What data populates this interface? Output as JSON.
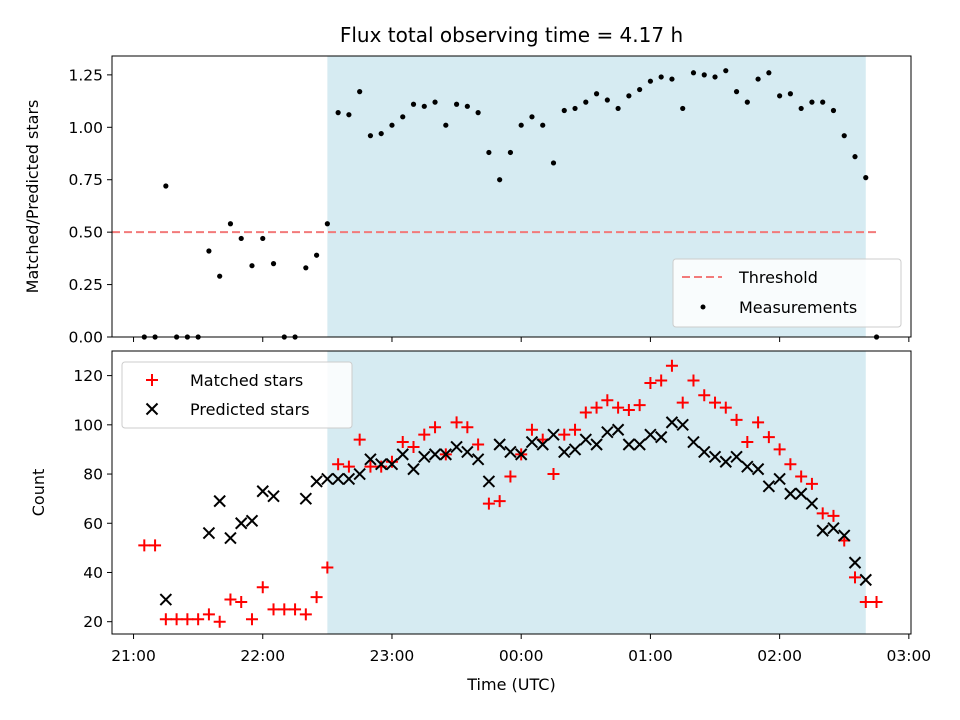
{
  "chart_data": [
    {
      "type": "scatter",
      "title": "Flux total observing time = 4.17 h",
      "xlabel": "",
      "ylabel": "Matched/Predicted stars",
      "ylim": [
        0,
        1.34
      ],
      "yticks": [
        "0.00",
        "0.25",
        "0.50",
        "0.75",
        "1.00",
        "1.25"
      ],
      "shaded_region": [
        "22:30",
        "02:40"
      ],
      "threshold": {
        "name": "Threshold",
        "value": 0.5,
        "x_range": [
          "20:50",
          "02:45"
        ],
        "color": "#f27a7a"
      },
      "legend_position": "lower right",
      "series": [
        {
          "name": "Measurements",
          "color": "#000000",
          "points": [
            [
              "21:05",
              0.0
            ],
            [
              "21:10",
              0.0
            ],
            [
              "21:15",
              0.72
            ],
            [
              "21:20",
              0.0
            ],
            [
              "21:25",
              0.0
            ],
            [
              "21:30",
              0.0
            ],
            [
              "21:35",
              0.41
            ],
            [
              "21:40",
              0.29
            ],
            [
              "21:45",
              0.54
            ],
            [
              "21:50",
              0.47
            ],
            [
              "21:55",
              0.34
            ],
            [
              "22:00",
              0.47
            ],
            [
              "22:05",
              0.35
            ],
            [
              "22:10",
              0.0
            ],
            [
              "22:15",
              0.0
            ],
            [
              "22:20",
              0.33
            ],
            [
              "22:25",
              0.39
            ],
            [
              "22:30",
              0.54
            ],
            [
              "22:35",
              1.07
            ],
            [
              "22:40",
              1.06
            ],
            [
              "22:45",
              1.17
            ],
            [
              "22:50",
              0.96
            ],
            [
              "22:55",
              0.97
            ],
            [
              "23:00",
              1.01
            ],
            [
              "23:05",
              1.05
            ],
            [
              "23:10",
              1.11
            ],
            [
              "23:15",
              1.1
            ],
            [
              "23:20",
              1.12
            ],
            [
              "23:25",
              1.01
            ],
            [
              "23:30",
              1.11
            ],
            [
              "23:35",
              1.1
            ],
            [
              "23:40",
              1.07
            ],
            [
              "23:45",
              0.88
            ],
            [
              "23:50",
              0.75
            ],
            [
              "23:55",
              0.88
            ],
            [
              "00:00",
              1.01
            ],
            [
              "00:05",
              1.05
            ],
            [
              "00:10",
              1.01
            ],
            [
              "00:15",
              0.83
            ],
            [
              "00:20",
              1.08
            ],
            [
              "00:25",
              1.09
            ],
            [
              "00:30",
              1.12
            ],
            [
              "00:35",
              1.16
            ],
            [
              "00:40",
              1.13
            ],
            [
              "00:45",
              1.09
            ],
            [
              "00:50",
              1.15
            ],
            [
              "00:55",
              1.18
            ],
            [
              "01:00",
              1.22
            ],
            [
              "01:05",
              1.24
            ],
            [
              "01:10",
              1.23
            ],
            [
              "01:15",
              1.09
            ],
            [
              "01:20",
              1.26
            ],
            [
              "01:25",
              1.25
            ],
            [
              "01:30",
              1.24
            ],
            [
              "01:35",
              1.27
            ],
            [
              "01:40",
              1.17
            ],
            [
              "01:45",
              1.12
            ],
            [
              "01:50",
              1.23
            ],
            [
              "01:55",
              1.26
            ],
            [
              "02:00",
              1.15
            ],
            [
              "02:05",
              1.16
            ],
            [
              "02:10",
              1.09
            ],
            [
              "02:15",
              1.12
            ],
            [
              "02:20",
              1.12
            ],
            [
              "02:25",
              1.08
            ],
            [
              "02:30",
              0.96
            ],
            [
              "02:35",
              0.86
            ],
            [
              "02:40",
              0.76
            ],
            [
              "02:45",
              0.0
            ]
          ]
        }
      ]
    },
    {
      "type": "scatter",
      "title": "",
      "xlabel": "Time (UTC)",
      "ylabel": "Count",
      "ylim": [
        15,
        130
      ],
      "yticks": [
        "20",
        "40",
        "60",
        "80",
        "100",
        "120"
      ],
      "xlim": [
        "20:50",
        "03:01"
      ],
      "xticks": [
        "21:00",
        "22:00",
        "23:00",
        "00:00",
        "01:00",
        "02:00",
        "03:00"
      ],
      "shaded_region": [
        "22:30",
        "02:40"
      ],
      "legend_position": "upper left",
      "series": [
        {
          "name": "Matched stars",
          "marker": "plus",
          "color": "#ff0000",
          "points": [
            [
              "21:05",
              51
            ],
            [
              "21:10",
              51
            ],
            [
              "21:15",
              21
            ],
            [
              "21:20",
              21
            ],
            [
              "21:25",
              21
            ],
            [
              "21:30",
              21
            ],
            [
              "21:35",
              23
            ],
            [
              "21:40",
              20
            ],
            [
              "21:45",
              29
            ],
            [
              "21:50",
              28
            ],
            [
              "21:55",
              21
            ],
            [
              "22:00",
              34
            ],
            [
              "22:05",
              25
            ],
            [
              "22:10",
              25
            ],
            [
              "22:15",
              25
            ],
            [
              "22:20",
              23
            ],
            [
              "22:25",
              30
            ],
            [
              "22:30",
              42
            ],
            [
              "22:35",
              84
            ],
            [
              "22:40",
              83
            ],
            [
              "22:45",
              94
            ],
            [
              "22:50",
              83
            ],
            [
              "22:55",
              83
            ],
            [
              "23:00",
              85
            ],
            [
              "23:05",
              93
            ],
            [
              "23:10",
              91
            ],
            [
              "23:15",
              96
            ],
            [
              "23:20",
              99
            ],
            [
              "23:25",
              88
            ],
            [
              "23:30",
              101
            ],
            [
              "23:35",
              99
            ],
            [
              "23:40",
              92
            ],
            [
              "23:45",
              68
            ],
            [
              "23:50",
              69
            ],
            [
              "23:55",
              79
            ],
            [
              "00:00",
              88
            ],
            [
              "00:05",
              98
            ],
            [
              "00:10",
              94
            ],
            [
              "00:15",
              80
            ],
            [
              "00:20",
              96
            ],
            [
              "00:25",
              98
            ],
            [
              "00:30",
              105
            ],
            [
              "00:35",
              107
            ],
            [
              "00:40",
              110
            ],
            [
              "00:45",
              107
            ],
            [
              "00:50",
              106
            ],
            [
              "00:55",
              108
            ],
            [
              "01:00",
              117
            ],
            [
              "01:05",
              118
            ],
            [
              "01:10",
              124
            ],
            [
              "01:15",
              109
            ],
            [
              "01:20",
              118
            ],
            [
              "01:25",
              112
            ],
            [
              "01:30",
              109
            ],
            [
              "01:35",
              107
            ],
            [
              "01:40",
              102
            ],
            [
              "01:45",
              93
            ],
            [
              "01:50",
              101
            ],
            [
              "01:55",
              95
            ],
            [
              "02:00",
              90
            ],
            [
              "02:05",
              84
            ],
            [
              "02:10",
              79
            ],
            [
              "02:15",
              76
            ],
            [
              "02:20",
              64
            ],
            [
              "02:25",
              63
            ],
            [
              "02:30",
              53
            ],
            [
              "02:35",
              38
            ],
            [
              "02:40",
              28
            ],
            [
              "02:45",
              28
            ]
          ]
        },
        {
          "name": "Predicted stars",
          "marker": "x",
          "color": "#000000",
          "points": [
            [
              "21:15",
              29
            ],
            [
              "21:35",
              56
            ],
            [
              "21:40",
              69
            ],
            [
              "21:45",
              54
            ],
            [
              "21:50",
              60
            ],
            [
              "21:55",
              61
            ],
            [
              "22:00",
              73
            ],
            [
              "22:05",
              71
            ],
            [
              "22:20",
              70
            ],
            [
              "22:25",
              77
            ],
            [
              "22:30",
              78
            ],
            [
              "22:35",
              78
            ],
            [
              "22:40",
              78
            ],
            [
              "22:45",
              80
            ],
            [
              "22:50",
              86
            ],
            [
              "22:55",
              84
            ],
            [
              "23:00",
              84
            ],
            [
              "23:05",
              88
            ],
            [
              "23:10",
              82
            ],
            [
              "23:15",
              87
            ],
            [
              "23:20",
              88
            ],
            [
              "23:25",
              88
            ],
            [
              "23:30",
              91
            ],
            [
              "23:35",
              89
            ],
            [
              "23:40",
              86
            ],
            [
              "23:45",
              77
            ],
            [
              "23:50",
              92
            ],
            [
              "23:55",
              89
            ],
            [
              "00:00",
              88
            ],
            [
              "00:05",
              93
            ],
            [
              "00:10",
              92
            ],
            [
              "00:15",
              96
            ],
            [
              "00:20",
              89
            ],
            [
              "00:25",
              90
            ],
            [
              "00:30",
              94
            ],
            [
              "00:35",
              92
            ],
            [
              "00:40",
              97
            ],
            [
              "00:45",
              98
            ],
            [
              "00:50",
              92
            ],
            [
              "00:55",
              92
            ],
            [
              "01:00",
              96
            ],
            [
              "01:05",
              95
            ],
            [
              "01:10",
              101
            ],
            [
              "01:15",
              100
            ],
            [
              "01:20",
              93
            ],
            [
              "01:25",
              89
            ],
            [
              "01:30",
              87
            ],
            [
              "01:35",
              85
            ],
            [
              "01:40",
              87
            ],
            [
              "01:45",
              83
            ],
            [
              "01:50",
              82
            ],
            [
              "01:55",
              75
            ],
            [
              "02:00",
              78
            ],
            [
              "02:05",
              72
            ],
            [
              "02:10",
              72
            ],
            [
              "02:15",
              68
            ],
            [
              "02:20",
              57
            ],
            [
              "02:25",
              58
            ],
            [
              "02:30",
              55
            ],
            [
              "02:35",
              44
            ],
            [
              "02:40",
              37
            ]
          ]
        }
      ]
    }
  ]
}
